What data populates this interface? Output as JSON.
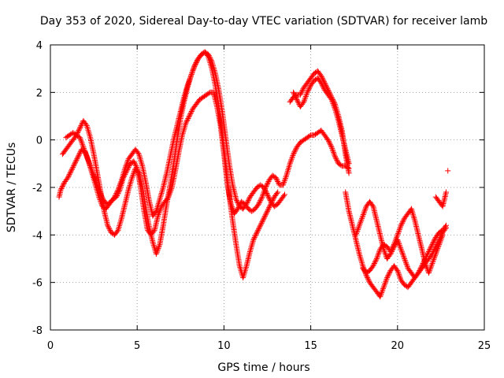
{
  "chart_data": {
    "type": "scatter",
    "title": "Day 353 of 2020, Sidereal Day-to-day VTEC variation (SDTVAR) for receiver lamb",
    "xlabel": "GPS time / hours",
    "ylabel": "SDTVAR / TECUs",
    "xlim": [
      0,
      25
    ],
    "ylim": [
      -8,
      4
    ],
    "xticks": [
      0,
      5,
      10,
      15,
      20,
      25
    ],
    "yticks": [
      -8,
      -6,
      -4,
      -2,
      0,
      2,
      4
    ],
    "xtick_labels": [
      "0",
      "5",
      "10",
      "15",
      "20",
      "25"
    ],
    "ytick_labels": [
      "-8",
      "-6",
      "-4",
      "-2",
      "0",
      "2",
      "4"
    ],
    "grid": true,
    "marker": "+",
    "marker_color": "#ff0000",
    "series": [
      {
        "x": [
          0.5,
          0.6,
          0.8,
          1.0,
          1.2,
          1.4,
          1.6,
          1.8,
          2.0,
          2.2,
          2.4,
          2.6,
          2.8,
          3.0,
          3.2,
          3.4,
          3.6,
          3.8,
          4.0,
          4.2,
          4.4,
          4.6,
          4.8,
          5.0,
          5.2,
          5.4,
          5.6,
          5.8,
          6.0,
          6.2,
          6.4,
          6.6,
          6.8,
          7.0,
          7.2,
          7.4,
          7.6,
          7.8,
          8.0,
          8.2,
          8.4,
          8.6,
          8.8,
          9.0,
          9.2,
          9.4,
          9.6,
          9.8,
          10.0,
          10.2,
          10.4,
          10.6,
          10.8,
          11.0,
          11.2,
          11.4,
          11.6,
          11.8,
          12.0,
          12.2,
          12.4,
          12.6,
          12.8,
          13.0,
          13.2,
          13.4,
          13.6,
          13.8,
          14.0,
          14.2,
          14.4,
          14.6,
          14.8,
          15.0,
          15.2,
          15.4,
          15.6,
          15.8,
          16.0,
          16.2,
          16.4,
          16.6,
          16.8,
          17.0,
          17.2
        ],
        "y": [
          -2.4,
          -2.1,
          -1.8,
          -1.6,
          -1.3,
          -1.0,
          -0.7,
          -0.4,
          -0.5,
          -0.9,
          -1.4,
          -1.9,
          -2.4,
          -2.8,
          -2.9,
          -2.7,
          -2.5,
          -2.4,
          -2.1,
          -1.6,
          -1.3,
          -1.0,
          -0.9,
          -1.2,
          -2.0,
          -3.0,
          -3.8,
          -4.0,
          -3.8,
          -3.2,
          -2.8,
          -2.6,
          -2.4,
          -2.0,
          -1.3,
          -0.5,
          0.2,
          0.7,
          1.0,
          1.3,
          1.5,
          1.7,
          1.8,
          1.9,
          2.0,
          2.0,
          1.4,
          0.6,
          -0.6,
          -1.9,
          -2.7,
          -3.1,
          -2.9,
          -2.6,
          -2.7,
          -2.9,
          -3.0,
          -2.9,
          -2.7,
          -2.4,
          -2.0,
          -1.7,
          -1.5,
          -1.6,
          -1.9,
          -1.9,
          -1.5,
          -1.0,
          -0.6,
          -0.3,
          -0.1,
          0.0,
          0.1,
          0.2,
          0.2,
          0.3,
          0.4,
          0.2,
          0.0,
          -0.3,
          -0.7,
          -1.0,
          -1.1,
          -1.1,
          -1.2
        ]
      },
      {
        "x": [
          0.7,
          0.9,
          1.1,
          1.3,
          1.5,
          1.7,
          1.9,
          2.1,
          2.3,
          2.5,
          2.7,
          2.9,
          3.1,
          3.3,
          3.5,
          3.7,
          3.9,
          4.1,
          4.3,
          4.5,
          4.7,
          4.9,
          5.1,
          5.3,
          5.5,
          5.7,
          5.9,
          6.1,
          6.3,
          6.5,
          6.7,
          6.9,
          7.1,
          7.3,
          7.5,
          7.7,
          7.9,
          8.1,
          8.3,
          8.5,
          8.7,
          8.9,
          9.1,
          9.3,
          9.5,
          9.7,
          9.9,
          10.1,
          10.3,
          10.5,
          10.7,
          10.9,
          11.1,
          11.3,
          11.5,
          11.7,
          11.9,
          12.1,
          12.3,
          12.5,
          12.7,
          12.9,
          13.1
        ],
        "y": [
          -0.6,
          -0.4,
          -0.2,
          0.0,
          0.2,
          0.5,
          0.8,
          0.6,
          0.1,
          -0.6,
          -1.4,
          -2.2,
          -3.0,
          -3.6,
          -3.9,
          -4.0,
          -3.8,
          -3.3,
          -2.7,
          -2.1,
          -1.6,
          -1.2,
          -1.4,
          -2.0,
          -2.9,
          -3.7,
          -4.3,
          -4.8,
          -4.4,
          -3.6,
          -2.7,
          -1.9,
          -1.0,
          0.0,
          0.9,
          1.6,
          2.2,
          2.7,
          3.1,
          3.4,
          3.6,
          3.7,
          3.5,
          3.0,
          2.3,
          1.4,
          0.3,
          -1.0,
          -2.3,
          -3.4,
          -4.4,
          -5.3,
          -5.8,
          -5.3,
          -4.7,
          -4.2,
          -3.9,
          -3.6,
          -3.3,
          -3.0,
          -2.7,
          -2.4,
          -2.2
        ]
      },
      {
        "x": [
          0.9,
          1.1,
          1.3,
          1.5,
          1.7,
          1.9,
          2.1,
          2.3,
          2.5,
          2.7,
          2.9,
          3.1,
          3.3,
          3.5,
          3.7,
          3.9,
          4.1,
          4.3,
          4.5,
          4.7,
          4.9,
          5.1,
          5.3,
          5.5,
          5.7,
          5.9,
          6.1,
          6.3,
          6.5,
          6.7,
          6.9,
          7.1,
          7.3,
          7.5,
          7.7,
          7.9,
          8.1,
          8.3,
          8.5,
          8.7,
          8.9,
          9.1,
          9.3,
          9.5,
          9.7,
          9.9,
          10.1,
          10.3,
          10.5,
          10.7,
          10.9,
          11.1,
          11.3,
          11.5,
          11.7,
          11.9,
          12.1,
          12.3,
          12.5,
          12.7,
          12.9,
          13.1,
          13.3,
          13.5
        ],
        "y": [
          0.1,
          0.2,
          0.3,
          0.2,
          0.1,
          -0.3,
          -0.7,
          -1.1,
          -1.5,
          -1.9,
          -2.3,
          -2.6,
          -2.7,
          -2.6,
          -2.4,
          -2.1,
          -1.7,
          -1.2,
          -0.8,
          -0.6,
          -0.4,
          -0.6,
          -1.1,
          -1.8,
          -2.6,
          -3.2,
          -3.0,
          -2.5,
          -2.0,
          -1.4,
          -0.7,
          0.0,
          0.6,
          1.2,
          1.8,
          2.3,
          2.7,
          3.1,
          3.4,
          3.6,
          3.7,
          3.6,
          3.3,
          2.8,
          2.1,
          1.2,
          0.1,
          -1.0,
          -1.9,
          -2.5,
          -2.8,
          -2.9,
          -2.7,
          -2.4,
          -2.2,
          -2.0,
          -1.9,
          -2.0,
          -2.3,
          -2.6,
          -2.8,
          -2.7,
          -2.5,
          -2.3
        ]
      },
      {
        "x": [
          13.8,
          14.0,
          14.2,
          14.4,
          14.6,
          14.8,
          15.0,
          15.2,
          15.4,
          15.6,
          15.8,
          16.0,
          16.2,
          16.4,
          16.6,
          16.8,
          17.0,
          17.2
        ],
        "y": [
          1.6,
          1.8,
          1.9,
          1.9,
          2.2,
          2.4,
          2.6,
          2.8,
          2.9,
          2.7,
          2.4,
          2.1,
          1.8,
          1.5,
          1.0,
          0.4,
          -0.6,
          -1.4
        ]
      },
      {
        "x": [
          14.0,
          14.2,
          14.4,
          14.6,
          14.8,
          15.0,
          15.2,
          15.4,
          15.6,
          15.8,
          16.0,
          16.2,
          16.4,
          16.6,
          16.8,
          17.0,
          17.2
        ],
        "y": [
          2.0,
          1.7,
          1.4,
          1.6,
          2.0,
          2.3,
          2.5,
          2.6,
          2.4,
          2.1,
          1.9,
          1.7,
          1.3,
          0.8,
          0.2,
          -0.4,
          -1.0
        ]
      },
      {
        "x": [
          17.0,
          17.2,
          17.4,
          17.6,
          17.8,
          18.0,
          18.2,
          18.4,
          18.6,
          18.8,
          19.0,
          19.2,
          19.4,
          19.6,
          19.8,
          20.0,
          20.2,
          20.4,
          20.6,
          20.8,
          21.0,
          21.2,
          21.4,
          21.6,
          21.8,
          22.0,
          22.2,
          22.4,
          22.6,
          22.8
        ],
        "y": [
          -2.2,
          -3.0,
          -3.6,
          -4.2,
          -4.8,
          -5.3,
          -5.7,
          -6.0,
          -6.2,
          -6.4,
          -6.6,
          -6.2,
          -5.8,
          -5.5,
          -5.3,
          -5.5,
          -5.9,
          -6.1,
          -6.2,
          -6.0,
          -5.8,
          -5.6,
          -5.4,
          -5.2,
          -5.0,
          -4.8,
          -4.5,
          -4.2,
          -3.9,
          -3.7
        ]
      },
      {
        "x": [
          17.6,
          17.8,
          18.0,
          18.2,
          18.4,
          18.6,
          18.8,
          19.0,
          19.2,
          19.4,
          19.6,
          19.8,
          20.0,
          20.2,
          20.4,
          20.6,
          20.8,
          21.0,
          21.2,
          21.4,
          21.6,
          21.8,
          22.0,
          22.2,
          22.4,
          22.6,
          22.8
        ],
        "y": [
          -4.0,
          -3.6,
          -3.2,
          -2.8,
          -2.6,
          -2.8,
          -3.4,
          -4.0,
          -4.6,
          -5.0,
          -4.8,
          -4.5,
          -4.2,
          -4.6,
          -5.0,
          -5.4,
          -5.6,
          -5.8,
          -5.6,
          -5.3,
          -5.0,
          -4.7,
          -4.4,
          -4.1,
          -3.9,
          -3.8,
          -3.6
        ]
      },
      {
        "x": [
          18.0,
          18.2,
          18.4,
          18.6,
          18.8,
          19.0,
          19.2,
          19.4,
          19.6,
          19.8,
          20.0,
          20.2,
          20.4,
          20.6,
          20.8,
          21.0,
          21.2,
          21.4,
          21.6,
          21.8,
          22.0,
          22.2,
          22.4,
          22.6
        ],
        "y": [
          -5.4,
          -5.6,
          -5.5,
          -5.3,
          -5.0,
          -4.6,
          -4.4,
          -4.5,
          -4.7,
          -4.4,
          -4.0,
          -3.6,
          -3.3,
          -3.1,
          -2.9,
          -3.4,
          -4.0,
          -4.6,
          -5.2,
          -5.6,
          -5.2,
          -4.8,
          -4.4,
          -4.0
        ]
      },
      {
        "x": [
          22.2,
          22.4,
          22.6,
          22.8
        ],
        "y": [
          -2.4,
          -2.6,
          -2.8,
          -2.2
        ]
      },
      {
        "x": [
          22.9
        ],
        "y": [
          -1.3
        ]
      }
    ]
  }
}
